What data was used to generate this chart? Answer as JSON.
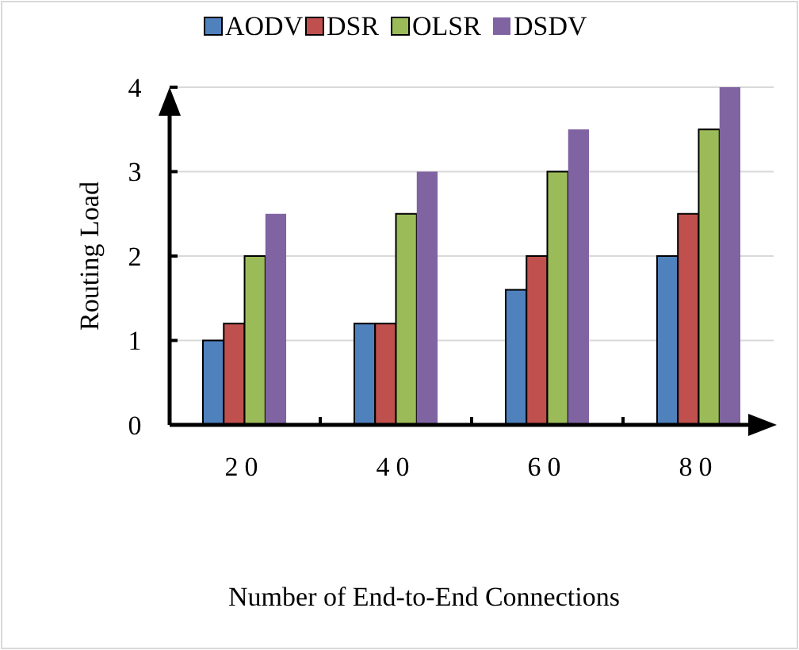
{
  "chart_data": {
    "type": "bar",
    "xlabel": "Number of End-to-End Connections",
    "ylabel": "Routing Load",
    "categories": [
      "20",
      "40",
      "60",
      "80"
    ],
    "series": [
      {
        "name": "AODV",
        "color": "#4f81bd",
        "values": [
          1,
          1.2,
          1.6,
          2
        ]
      },
      {
        "name": "DSR",
        "color": "#c0504d",
        "values": [
          1.2,
          1.2,
          2,
          2.5
        ]
      },
      {
        "name": "OLSR",
        "color": "#9bbb59",
        "values": [
          2,
          2.5,
          3,
          3.5
        ]
      },
      {
        "name": "DSDV",
        "color": "#8064a2",
        "values": [
          2.5,
          3,
          3.5,
          4
        ]
      }
    ],
    "ylim": [
      0,
      4
    ],
    "yticks": [
      0,
      1,
      2,
      3,
      4
    ],
    "grid": "y",
    "legend": "top"
  }
}
